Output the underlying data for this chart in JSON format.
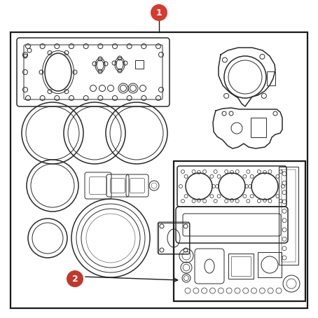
{
  "bg_color": "#ffffff",
  "border_color": "#1a1a1a",
  "line_color": "#2a2a2a",
  "label1_color": "#d63a2f",
  "label2_color": "#c0392b",
  "figsize": [
    4.54,
    4.54
  ],
  "dpi": 100,
  "label1": "1",
  "label2": "2"
}
